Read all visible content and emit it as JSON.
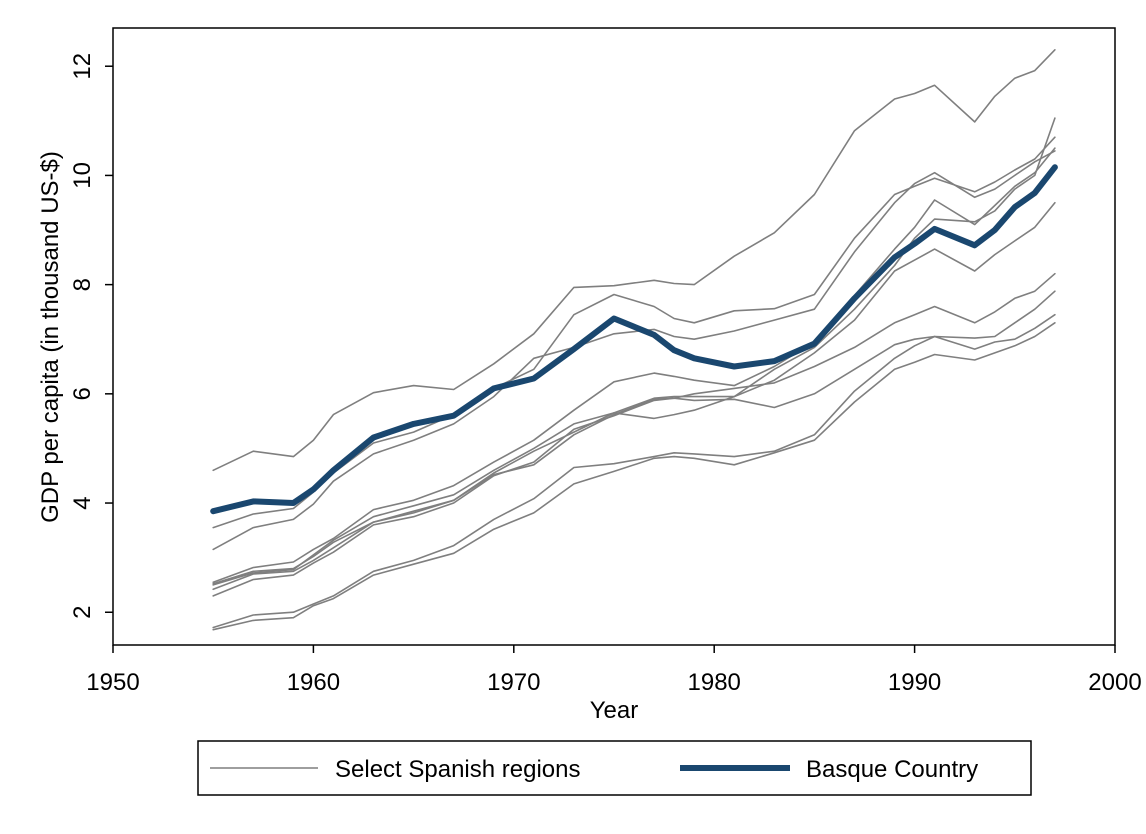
{
  "chart_data": {
    "type": "line",
    "title": "",
    "xlabel": "Year",
    "ylabel": "GDP per capita (in thousand US-$)",
    "xlim": [
      1950,
      2000
    ],
    "ylim": [
      1.4,
      12.7
    ],
    "x_ticks": [
      1950,
      1960,
      1970,
      1980,
      1990,
      2000
    ],
    "y_ticks": [
      2,
      4,
      6,
      8,
      10,
      12
    ],
    "grid": false,
    "legend_position": "bottom",
    "x": [
      1955,
      1957,
      1959,
      1960,
      1961,
      1963,
      1965,
      1967,
      1969,
      1971,
      1973,
      1975,
      1977,
      1978,
      1979,
      1981,
      1983,
      1985,
      1987,
      1989,
      1990,
      1991,
      1993,
      1994,
      1995,
      1996,
      1997
    ],
    "series": [
      {
        "name": "Select Spanish regions",
        "group": "regions",
        "color": "#7f7f7f",
        "values": [
          4.6,
          4.95,
          4.85,
          5.15,
          5.62,
          6.02,
          6.15,
          6.08,
          6.55,
          7.1,
          7.95,
          7.98,
          8.08,
          8.02,
          8.0,
          8.52,
          8.95,
          9.65,
          10.82,
          11.4,
          11.5,
          11.65,
          10.98,
          11.45,
          11.78,
          11.92,
          12.3
        ]
      },
      {
        "name": "",
        "group": "regions",
        "color": "#7f7f7f",
        "values": [
          3.55,
          3.8,
          3.9,
          4.2,
          4.55,
          5.1,
          5.3,
          5.62,
          6.1,
          6.45,
          7.45,
          7.82,
          7.6,
          7.38,
          7.3,
          7.52,
          7.56,
          7.82,
          8.85,
          9.65,
          9.8,
          9.95,
          9.7,
          9.88,
          10.1,
          10.3,
          10.7
        ]
      },
      {
        "name": "",
        "group": "regions",
        "color": "#7f7f7f",
        "values": [
          3.15,
          3.55,
          3.7,
          3.98,
          4.4,
          4.9,
          5.15,
          5.45,
          5.95,
          6.65,
          6.85,
          7.1,
          7.18,
          7.05,
          7.0,
          7.15,
          7.35,
          7.55,
          8.6,
          9.5,
          9.85,
          10.05,
          9.6,
          9.75,
          10.0,
          10.25,
          10.45
        ]
      },
      {
        "name": "",
        "group": "regions",
        "color": "#7f7f7f",
        "values": [
          2.55,
          2.82,
          2.92,
          3.15,
          3.35,
          3.88,
          4.05,
          4.32,
          4.75,
          5.15,
          5.7,
          6.22,
          6.38,
          6.32,
          6.25,
          6.15,
          6.5,
          6.95,
          7.8,
          8.65,
          9.05,
          9.55,
          9.1,
          9.45,
          9.8,
          10.05,
          10.5
        ]
      },
      {
        "name": "",
        "group": "regions",
        "color": "#7f7f7f",
        "values": [
          2.5,
          2.72,
          2.78,
          3.05,
          3.32,
          3.75,
          3.95,
          4.15,
          4.6,
          5.0,
          5.45,
          5.65,
          5.55,
          5.62,
          5.7,
          5.95,
          6.45,
          6.85,
          7.55,
          8.35,
          8.85,
          9.2,
          9.15,
          9.35,
          9.75,
          10.0,
          11.05
        ]
      },
      {
        "name": "",
        "group": "regions",
        "color": "#7f7f7f",
        "values": [
          2.42,
          2.7,
          2.75,
          2.95,
          3.18,
          3.65,
          3.85,
          4.05,
          4.55,
          4.95,
          5.3,
          5.65,
          5.92,
          5.95,
          5.95,
          5.95,
          6.25,
          6.75,
          7.35,
          8.25,
          8.45,
          8.65,
          8.25,
          8.55,
          8.8,
          9.05,
          9.5
        ]
      },
      {
        "name": "",
        "group": "regions",
        "color": "#7f7f7f",
        "values": [
          2.3,
          2.6,
          2.68,
          2.9,
          3.1,
          3.6,
          3.75,
          4.0,
          4.5,
          4.75,
          5.35,
          5.6,
          5.88,
          5.92,
          6.0,
          6.1,
          6.2,
          6.5,
          6.85,
          7.3,
          7.45,
          7.6,
          7.3,
          7.5,
          7.75,
          7.88,
          8.2
        ]
      },
      {
        "name": "",
        "group": "regions",
        "color": "#7f7f7f",
        "values": [
          2.52,
          2.75,
          2.8,
          3.02,
          3.28,
          3.65,
          3.82,
          4.05,
          4.52,
          4.7,
          5.25,
          5.62,
          5.9,
          5.92,
          5.88,
          5.9,
          5.75,
          6.0,
          6.45,
          6.9,
          7.0,
          7.05,
          7.02,
          7.05,
          7.3,
          7.55,
          7.88
        ]
      },
      {
        "name": "",
        "group": "regions",
        "color": "#7f7f7f",
        "values": [
          1.72,
          1.95,
          2.0,
          2.15,
          2.3,
          2.75,
          2.95,
          3.22,
          3.7,
          4.08,
          4.65,
          4.72,
          4.85,
          4.92,
          4.9,
          4.85,
          4.95,
          5.25,
          6.05,
          6.65,
          6.88,
          7.05,
          6.82,
          6.95,
          7.0,
          7.2,
          7.45
        ]
      },
      {
        "name": "",
        "group": "regions",
        "color": "#7f7f7f",
        "values": [
          1.68,
          1.85,
          1.9,
          2.12,
          2.25,
          2.68,
          2.88,
          3.08,
          3.52,
          3.82,
          4.35,
          4.58,
          4.82,
          4.85,
          4.82,
          4.7,
          4.92,
          5.15,
          5.85,
          6.45,
          6.58,
          6.72,
          6.62,
          6.75,
          6.88,
          7.05,
          7.3
        ]
      },
      {
        "name": "Basque Country",
        "group": "basque",
        "color": "#1a476f",
        "values": [
          3.85,
          4.03,
          4.0,
          4.25,
          4.6,
          5.2,
          5.45,
          5.6,
          6.1,
          6.28,
          6.82,
          7.38,
          7.08,
          6.8,
          6.65,
          6.5,
          6.6,
          6.92,
          7.75,
          8.5,
          8.75,
          9.02,
          8.72,
          9.0,
          9.42,
          9.68,
          10.15
        ]
      }
    ]
  },
  "legend": {
    "items": [
      {
        "label": "Select Spanish regions",
        "color": "#7f7f7f"
      },
      {
        "label": "Basque Country",
        "color": "#1a476f"
      }
    ]
  }
}
